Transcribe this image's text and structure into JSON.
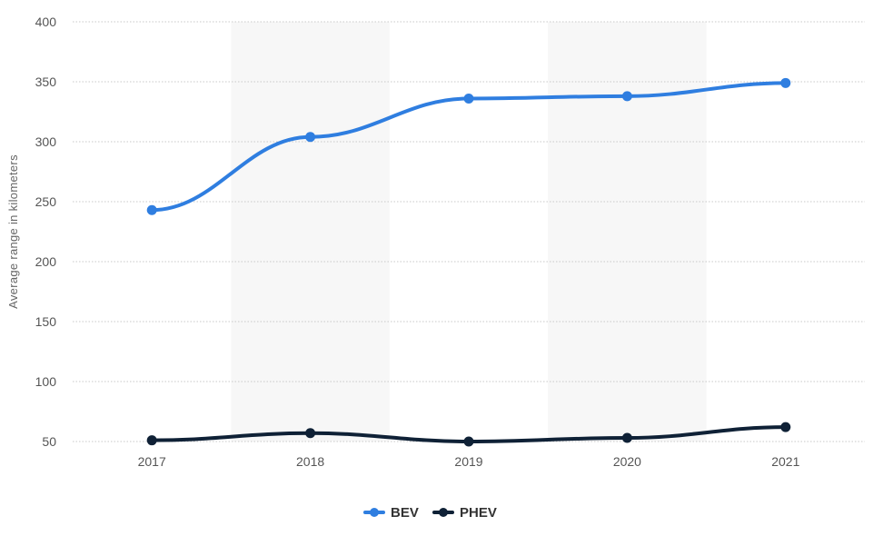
{
  "chart_data": {
    "type": "line",
    "categories": [
      "2017",
      "2018",
      "2019",
      "2020",
      "2021"
    ],
    "series": [
      {
        "name": "BEV",
        "values": [
          243,
          304,
          336,
          338,
          349
        ],
        "color": "#2f7ee0"
      },
      {
        "name": "PHEV",
        "values": [
          51,
          57,
          50,
          53,
          62
        ],
        "color": "#0f2136"
      }
    ],
    "title": "",
    "xlabel": "",
    "ylabel": "Average range in kilometers",
    "ylim": [
      50,
      400
    ],
    "yticks": [
      "50",
      "100",
      "150",
      "200",
      "250",
      "300",
      "350",
      "400"
    ],
    "grid": true,
    "legend_position": "bottom-center"
  }
}
